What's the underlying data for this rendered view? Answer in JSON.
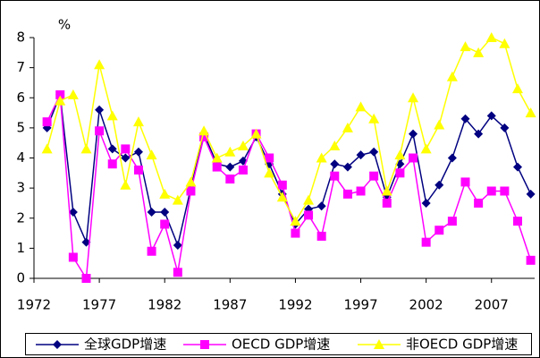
{
  "chart_data": {
    "type": "line",
    "unit_label": "%",
    "x": [
      1973,
      1974,
      1975,
      1976,
      1977,
      1978,
      1979,
      1980,
      1981,
      1982,
      1983,
      1984,
      1985,
      1986,
      1987,
      1988,
      1989,
      1990,
      1991,
      1992,
      1993,
      1994,
      1995,
      1996,
      1997,
      1998,
      1999,
      2000,
      2001,
      2002,
      2003,
      2004,
      2005,
      2006,
      2007,
      2008,
      2009,
      2010
    ],
    "xlim": [
      1972,
      2010.3
    ],
    "xticks": [
      1972,
      1977,
      1982,
      1987,
      1992,
      1997,
      2002,
      2007
    ],
    "ylim": [
      0,
      8
    ],
    "yticks": [
      0,
      1,
      2,
      3,
      4,
      5,
      6,
      7,
      8
    ],
    "grid": false,
    "legend": "bottom",
    "series": [
      {
        "name": "全球GDP增速",
        "color": "#000080",
        "marker": "diamond",
        "values": [
          5.0,
          6.1,
          2.2,
          1.2,
          5.6,
          4.3,
          4.0,
          4.2,
          2.2,
          2.2,
          1.1,
          3.0,
          4.8,
          3.8,
          3.7,
          3.9,
          4.7,
          3.8,
          2.8,
          1.8,
          2.3,
          2.4,
          3.8,
          3.7,
          4.1,
          4.2,
          2.7,
          3.8,
          4.8,
          2.5,
          3.1,
          4.0,
          5.3,
          4.8,
          5.4,
          5.0,
          3.7,
          2.8
        ]
      },
      {
        "name": "OECD GDP增速",
        "color": "#ff00ff",
        "marker": "square",
        "values": [
          5.2,
          6.1,
          0.7,
          0.0,
          4.9,
          3.8,
          4.3,
          3.6,
          0.9,
          1.8,
          0.2,
          2.9,
          4.7,
          3.7,
          3.3,
          3.6,
          4.8,
          4.0,
          3.1,
          1.5,
          2.1,
          1.4,
          3.4,
          2.8,
          2.9,
          3.4,
          2.5,
          3.5,
          4.0,
          1.2,
          1.6,
          1.9,
          3.2,
          2.5,
          2.9,
          2.9,
          1.9,
          0.6
        ]
      },
      {
        "name": "非OECD GDP增速",
        "color": "#ffff00",
        "marker": "triangle",
        "values": [
          4.3,
          5.9,
          6.1,
          4.3,
          7.1,
          5.4,
          3.1,
          5.2,
          4.1,
          2.8,
          2.6,
          3.2,
          4.9,
          4.0,
          4.2,
          4.4,
          4.8,
          3.5,
          2.7,
          1.9,
          2.6,
          4.0,
          4.4,
          5.0,
          5.7,
          5.3,
          2.9,
          4.1,
          6.0,
          4.3,
          5.1,
          6.7,
          7.7,
          7.5,
          8.0,
          7.8,
          6.3,
          5.5
        ]
      }
    ]
  }
}
